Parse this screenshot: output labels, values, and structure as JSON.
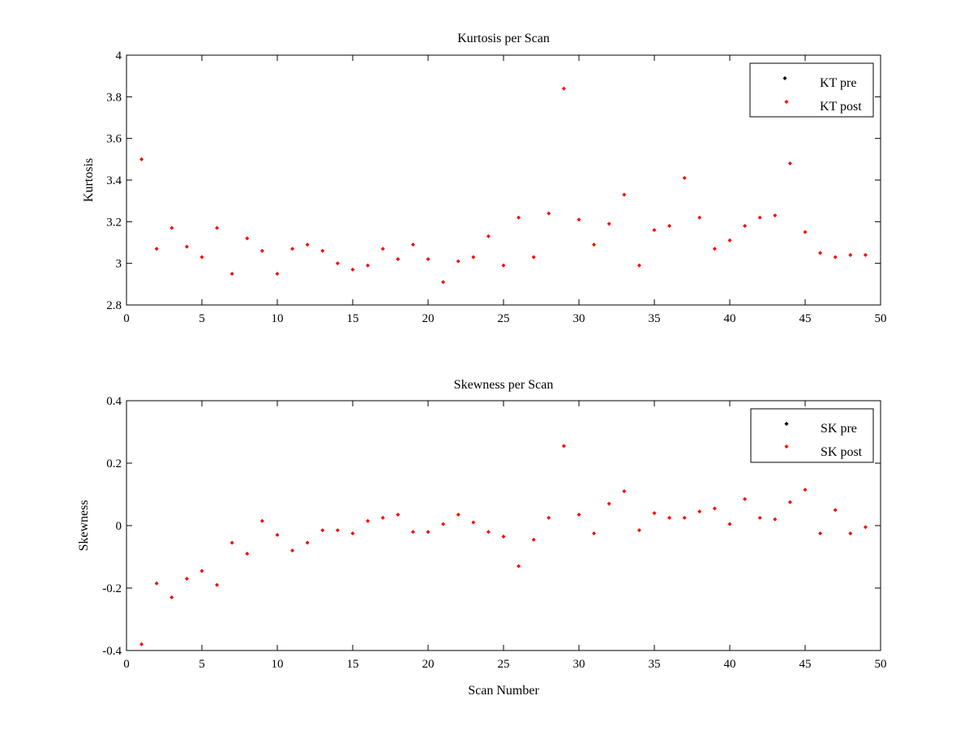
{
  "chart_data": [
    {
      "type": "scatter",
      "title": "Kurtosis per Scan",
      "xlabel": "",
      "ylabel": "Kurtosis",
      "xlim": [
        0,
        50
      ],
      "ylim": [
        2.8,
        4
      ],
      "xticks": [
        0,
        5,
        10,
        15,
        20,
        25,
        30,
        35,
        40,
        45,
        50
      ],
      "xtick_labels": [
        "0",
        "5",
        "10",
        "15",
        "20",
        "25",
        "30",
        "35",
        "40",
        "45",
        "50"
      ],
      "yticks": [
        2.8,
        3,
        3.2,
        3.4,
        3.6,
        3.8,
        4
      ],
      "ytick_labels": [
        "2.8",
        "3",
        "3.2",
        "3.4",
        "3.6",
        "3.8",
        "4"
      ],
      "grid": false,
      "legend_position": "top-right",
      "series": [
        {
          "name": "KT pre",
          "color": "#000000",
          "x": [],
          "y": []
        },
        {
          "name": "KT post",
          "color": "#ff0000",
          "x": [
            1,
            2,
            3,
            4,
            5,
            6,
            7,
            8,
            9,
            10,
            11,
            12,
            13,
            14,
            15,
            16,
            17,
            18,
            19,
            20,
            21,
            22,
            23,
            24,
            25,
            26,
            27,
            28,
            29,
            30,
            31,
            32,
            33,
            34,
            35,
            36,
            37,
            38,
            39,
            40,
            41,
            42,
            43,
            44,
            45,
            46,
            47,
            48,
            49
          ],
          "y": [
            3.5,
            3.07,
            3.17,
            3.08,
            3.03,
            3.17,
            2.95,
            3.12,
            3.06,
            2.95,
            3.07,
            3.09,
            3.06,
            3.0,
            2.97,
            2.99,
            3.07,
            3.02,
            3.09,
            3.02,
            2.91,
            3.01,
            3.03,
            3.13,
            2.99,
            3.22,
            3.03,
            3.24,
            3.84,
            3.21,
            3.09,
            3.19,
            3.33,
            2.99,
            3.16,
            3.18,
            3.41,
            3.22,
            3.07,
            3.11,
            3.18,
            3.22,
            3.23,
            3.48,
            3.15,
            3.05,
            3.03,
            3.04,
            3.04
          ]
        }
      ]
    },
    {
      "type": "scatter",
      "title": "Skewness per Scan",
      "xlabel": "Scan Number",
      "ylabel": "Skewness",
      "xlim": [
        0,
        50
      ],
      "ylim": [
        -0.4,
        0.4
      ],
      "xticks": [
        0,
        5,
        10,
        15,
        20,
        25,
        30,
        35,
        40,
        45,
        50
      ],
      "xtick_labels": [
        "0",
        "5",
        "10",
        "15",
        "20",
        "25",
        "30",
        "35",
        "40",
        "45",
        "50"
      ],
      "yticks": [
        -0.4,
        -0.2,
        0,
        0.2,
        0.4
      ],
      "ytick_labels": [
        "-0.4",
        "-0.2",
        "0",
        "0.2",
        "0.4"
      ],
      "grid": false,
      "legend_position": "top-right",
      "series": [
        {
          "name": "SK pre",
          "color": "#000000",
          "x": [],
          "y": []
        },
        {
          "name": "SK post",
          "color": "#ff0000",
          "x": [
            1,
            2,
            3,
            4,
            5,
            6,
            7,
            8,
            9,
            10,
            11,
            12,
            13,
            14,
            15,
            16,
            17,
            18,
            19,
            20,
            21,
            22,
            23,
            24,
            25,
            26,
            27,
            28,
            29,
            30,
            31,
            32,
            33,
            34,
            35,
            36,
            37,
            38,
            39,
            40,
            41,
            42,
            43,
            44,
            45,
            46,
            47,
            48,
            49
          ],
          "y": [
            -0.38,
            -0.185,
            -0.23,
            -0.17,
            -0.145,
            -0.19,
            -0.055,
            -0.09,
            0.015,
            -0.03,
            -0.08,
            -0.055,
            -0.015,
            -0.015,
            -0.025,
            0.015,
            0.025,
            0.035,
            -0.02,
            -0.02,
            0.005,
            0.035,
            0.01,
            -0.02,
            -0.035,
            -0.13,
            -0.045,
            0.025,
            0.255,
            0.035,
            -0.025,
            0.07,
            0.11,
            -0.015,
            0.04,
            0.025,
            0.025,
            0.045,
            0.055,
            0.005,
            0.085,
            0.025,
            0.02,
            0.075,
            0.115,
            -0.025,
            0.05,
            -0.025,
            -0.005
          ]
        }
      ]
    }
  ]
}
